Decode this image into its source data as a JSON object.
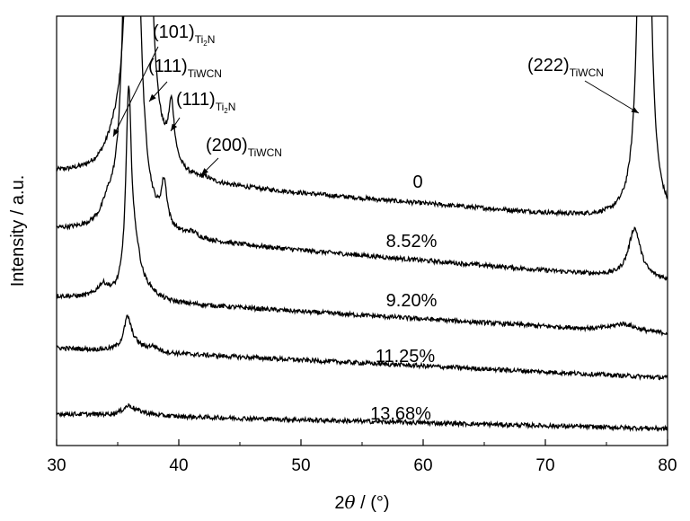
{
  "chart_data": {
    "type": "line",
    "xlabel_prefix": "2",
    "xlabel_theta": "θ",
    "xlabel_suffix": " / (°)",
    "ylabel": "Intensity / a.u.",
    "xlim": [
      30,
      80
    ],
    "xticks": [
      30,
      40,
      50,
      60,
      70,
      80
    ],
    "yticks_shown": false,
    "series": [
      {
        "name": "0",
        "baseline": 5.2,
        "slope": -0.02,
        "peaks": [
          [
            34.6,
            0.22,
            0.8
          ],
          [
            36.0,
            0.5,
            1.0
          ],
          [
            36.4,
            30,
            0.25
          ],
          [
            37.1,
            30,
            0.25
          ],
          [
            39.4,
            1.15,
            0.28
          ],
          [
            42.2,
            0.05,
            0.5
          ],
          [
            78.1,
            30,
            0.25
          ]
        ]
      },
      {
        "name": "8.52%",
        "baseline": 4.05,
        "slope": -0.02,
        "peaks": [
          [
            34.2,
            0.28,
            0.55
          ],
          [
            36.1,
            30,
            0.28
          ],
          [
            36.6,
            1.4,
            0.6
          ],
          [
            38.8,
            0.85,
            0.28
          ],
          [
            41.1,
            0.1,
            0.5
          ],
          [
            77.3,
            1.0,
            0.6
          ]
        ]
      },
      {
        "name": "9.20%",
        "baseline": 2.72,
        "slope": -0.015,
        "peaks": [
          [
            33.8,
            0.25,
            0.6
          ],
          [
            35.9,
            4.0,
            0.28
          ],
          [
            36.5,
            0.7,
            0.5
          ],
          [
            37.5,
            0.15,
            0.9
          ],
          [
            76.4,
            0.15,
            1.2
          ]
        ]
      },
      {
        "name": "11.25%",
        "baseline": 1.68,
        "slope": -0.012,
        "peaks": [
          [
            35.8,
            0.6,
            0.35
          ],
          [
            36.3,
            0.15,
            0.8
          ],
          [
            37.9,
            0.1,
            0.5
          ]
        ]
      },
      {
        "name": "13.68%",
        "baseline": 0.35,
        "slope": -0.006,
        "peaks": [
          [
            35.9,
            0.18,
            0.6
          ],
          [
            37.0,
            0.05,
            1.0
          ]
        ]
      }
    ],
    "annotations": [
      {
        "text": "(101)",
        "sub": "Ti",
        "sub2": "2",
        "sub3": "N"
      },
      {
        "text": "(111)",
        "sub": "TiWCN"
      },
      {
        "text": "(111)",
        "sub": "Ti",
        "sub2": "2",
        "sub3": "N"
      },
      {
        "text": "(200)",
        "sub": "TiWCN"
      },
      {
        "text": "(222)",
        "sub": "TiWCN"
      }
    ]
  }
}
